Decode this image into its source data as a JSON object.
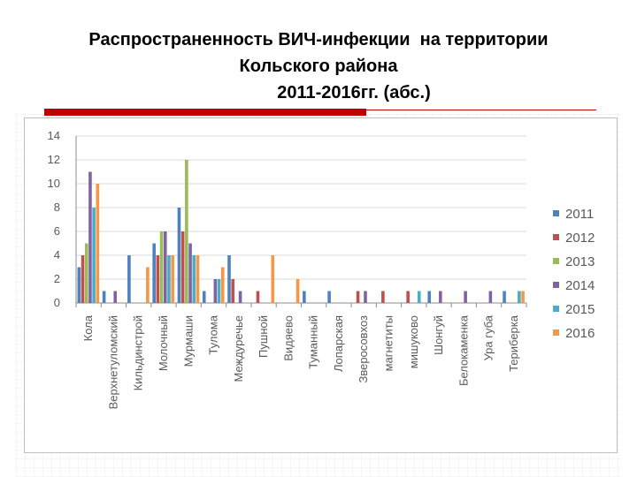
{
  "slide": {
    "title_lines": [
      "Распространенность ВИЧ-инфекции  на территории",
      "Кольского района",
      "2011-2016гг. (абс.)"
    ]
  },
  "chart_data": {
    "type": "bar",
    "title": "",
    "xlabel": "",
    "ylabel": "",
    "ylim": [
      0,
      14
    ],
    "yticks": [
      0,
      2,
      4,
      6,
      8,
      10,
      12,
      14
    ],
    "grid": true,
    "legend_position": "right",
    "categories": [
      "Кола",
      "Верхнетуломский",
      "Кильдинстрой",
      "Молочный",
      "Мурмаши",
      "Тулома",
      "Междуречье",
      "Пушной",
      "Видяево",
      "Туманный",
      "Лопарская",
      "Зверосовхоз",
      "магнетиты",
      "мишуково",
      "Шонгуй",
      "Белокаменка",
      "Ура губа",
      "Териберка"
    ],
    "series": [
      {
        "name": "2011",
        "color": "#4f81bd",
        "values": [
          3,
          1,
          4,
          5,
          8,
          1,
          4,
          0,
          0,
          1,
          1,
          0,
          0,
          0,
          1,
          0,
          0,
          1
        ]
      },
      {
        "name": "2012",
        "color": "#c0504d",
        "values": [
          4,
          0,
          0,
          4,
          6,
          0,
          2,
          1,
          0,
          0,
          0,
          1,
          1,
          1,
          0,
          0,
          0,
          0
        ]
      },
      {
        "name": "2013",
        "color": "#9bbb59",
        "values": [
          5,
          0,
          0,
          6,
          12,
          0,
          0,
          0,
          0,
          0,
          0,
          0,
          0,
          0,
          0,
          0,
          0,
          0
        ]
      },
      {
        "name": "2014",
        "color": "#8064a2",
        "values": [
          11,
          1,
          0,
          6,
          5,
          2,
          1,
          0,
          0,
          0,
          0,
          1,
          0,
          0,
          1,
          1,
          1,
          0
        ]
      },
      {
        "name": "2015",
        "color": "#4bacc6",
        "values": [
          8,
          0,
          0,
          4,
          4,
          2,
          0,
          0,
          0,
          0,
          0,
          0,
          0,
          1,
          0,
          0,
          0,
          1
        ]
      },
      {
        "name": "2016",
        "color": "#f79646",
        "values": [
          10,
          0,
          3,
          4,
          4,
          3,
          0,
          4,
          2,
          0,
          0,
          0,
          0,
          0,
          0,
          0,
          0,
          1
        ]
      }
    ]
  }
}
